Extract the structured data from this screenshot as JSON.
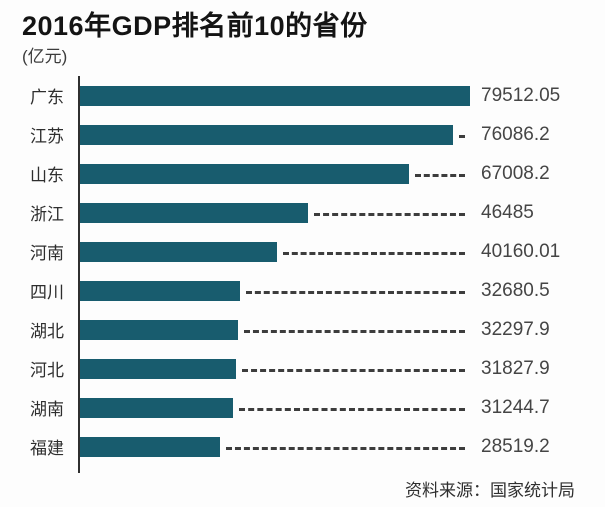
{
  "header": {
    "title": "2016年GDP排名前10的省份",
    "unit_label": "(亿元)"
  },
  "footer": {
    "source": "资料来源：国家统计局"
  },
  "colors": {
    "bar": "#185c6e",
    "axis": "#2f2f2f",
    "dash_line": "#3d3d3d",
    "title_text": "#141414",
    "category_text": "#2e2e2e",
    "value_text": "#454545",
    "background": "#fdfdfd"
  },
  "chart_data": {
    "type": "bar",
    "orientation": "horizontal",
    "title": "2016年GDP排名前10的省份",
    "unit": "亿元",
    "categories": [
      "广东",
      "江苏",
      "山东",
      "浙江",
      "河南",
      "四川",
      "湖北",
      "河北",
      "湖南",
      "福建"
    ],
    "values": [
      79512.05,
      76086.2,
      67008.2,
      46485,
      40160.01,
      32680.5,
      32297.9,
      31827.9,
      31244.7,
      28519.2
    ],
    "value_labels": [
      "79512.05",
      "76086.2",
      "67008.2",
      "46485",
      "40160.01",
      "32680.5",
      "32297.9",
      "31827.9",
      "31244.7",
      "28519.2"
    ],
    "xlim": [
      0,
      79512.05
    ],
    "grid": false,
    "legend": "none",
    "value_labels_position": "right",
    "source": "资料来源：国家统计局"
  }
}
